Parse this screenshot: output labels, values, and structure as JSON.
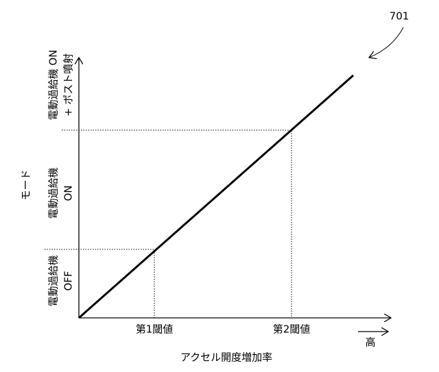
{
  "figure_label": "701",
  "y_axis": {
    "label": "モード",
    "modes": [
      {
        "lines": [
          "電動過給機",
          "OFF"
        ]
      },
      {
        "lines": [
          "電動過給機",
          "ON"
        ]
      },
      {
        "lines": [
          "電動過給機 ON",
          "+ ポスト噴射"
        ]
      }
    ]
  },
  "x_axis": {
    "label": "アクセル開度増加率",
    "thresholds": [
      "第1閾値",
      "第2閾値"
    ],
    "high_label": "高"
  }
}
